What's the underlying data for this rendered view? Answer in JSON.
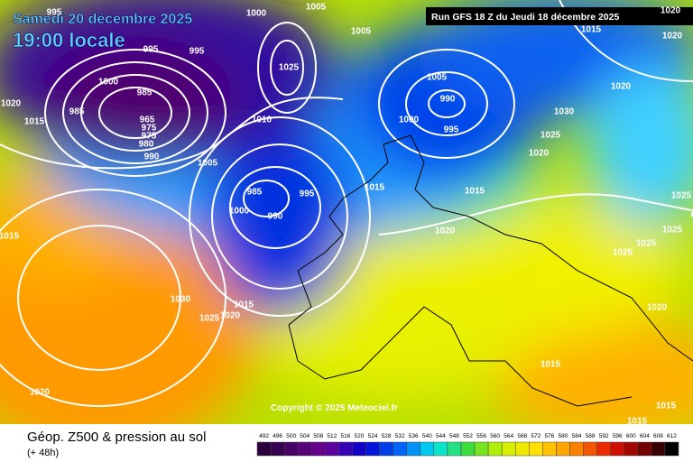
{
  "header": {
    "date": "Samedi 20 décembre 2025",
    "time": "19:00 locale",
    "run": "Run GFS 18 Z du Jeudi 18 décembre 2025"
  },
  "copyright": "Copyright © 2025 Meteociel.fr",
  "footer": {
    "title": "Géop. Z500 & pression au sol",
    "lead": "(+ 48h)"
  },
  "scale": {
    "labels": [
      492,
      496,
      500,
      504,
      508,
      512,
      516,
      520,
      524,
      528,
      532,
      536,
      540,
      544,
      548,
      552,
      556,
      560,
      564,
      568,
      572,
      576,
      580,
      584,
      588,
      592,
      596,
      600,
      604,
      608,
      612
    ]
  },
  "isobar_labels": [
    995,
    1000,
    1005,
    995,
    995,
    1025,
    1005,
    1015,
    1020,
    1000,
    985,
    1020,
    985,
    965,
    975,
    975,
    980,
    1015,
    1010,
    990,
    1005,
    1005,
    990,
    1000,
    995,
    1020,
    1030,
    1025,
    1020,
    985,
    995,
    1015,
    1015,
    1000,
    990,
    1015,
    1020,
    1025,
    1025,
    1025,
    1025,
    1030,
    1015,
    1025,
    1020,
    1020,
    1015,
    1020,
    1015,
    1015,
    1020
  ]
}
